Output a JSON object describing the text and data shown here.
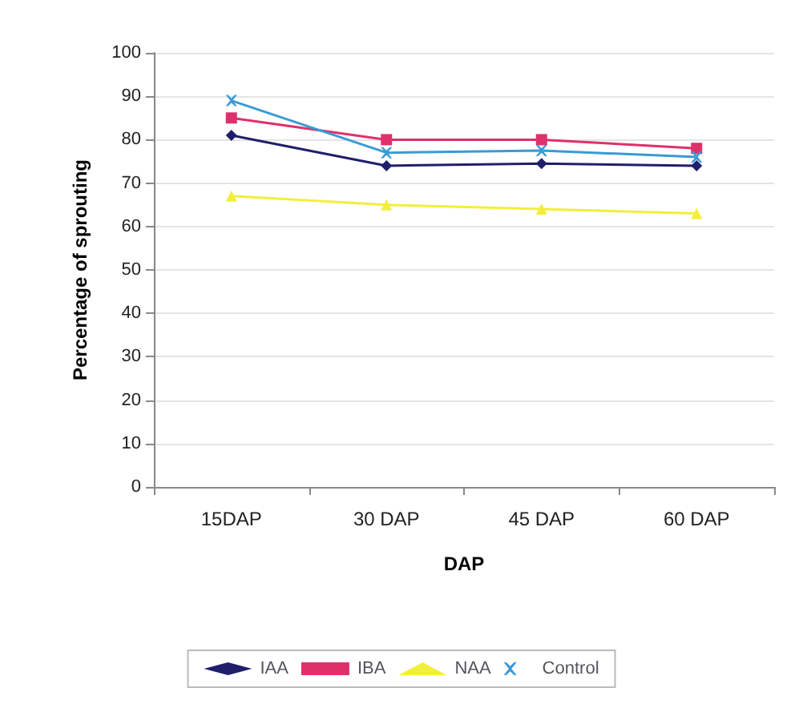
{
  "chart_data": {
    "type": "line",
    "xlabel": "DAP",
    "ylabel": "Percentage of sprouting",
    "categories": [
      "15DAP",
      "30 DAP",
      "45 DAP",
      "60 DAP"
    ],
    "series": [
      {
        "name": "IAA",
        "color": "#1f1f6b",
        "marker": "diamond",
        "values": [
          81,
          74,
          74.5,
          74
        ]
      },
      {
        "name": "IBA",
        "color": "#e0306a",
        "marker": "square",
        "values": [
          85,
          80,
          80,
          78
        ]
      },
      {
        "name": "NAA",
        "color": "#f2ef3a",
        "marker": "triangle",
        "values": [
          67,
          65,
          64,
          63
        ]
      },
      {
        "name": "Control",
        "color": "#3a9ad6",
        "marker": "cross",
        "values": [
          89,
          77,
          77.5,
          76
        ]
      }
    ],
    "ylim": [
      0,
      100
    ],
    "yticks": [
      0,
      10,
      20,
      30,
      40,
      50,
      60,
      70,
      80,
      90,
      100
    ],
    "grid": "y",
    "legend": "bottom"
  }
}
